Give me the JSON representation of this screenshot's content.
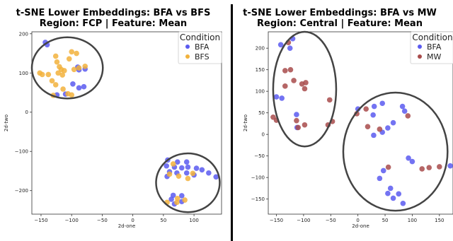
{
  "chart_data": [
    {
      "type": "scatter",
      "title": "t-SNE Lower Embeddings: BFA vs BFS",
      "subtitle": "Region: FCP | Feature: Mean",
      "xlabel": "2d-one",
      "ylabel": "2d-two",
      "xlim": [
        -165,
        145
      ],
      "ylim": [
        -260,
        205
      ],
      "xticks": [
        -150,
        -100,
        -50,
        0,
        50,
        100
      ],
      "yticks": [
        -200,
        -100,
        0,
        100,
        200
      ],
      "xtick_labels": [
        "−150",
        "−100",
        "−50",
        "0",
        "50",
        "100"
      ],
      "ytick_labels": [
        "−200",
        "−100",
        "0",
        "100",
        "200"
      ],
      "grid": false,
      "legend": {
        "title": "Condition",
        "placement": "top-right",
        "entries": [
          "BFA",
          "BFS"
        ]
      },
      "series": [
        {
          "name": "BFA",
          "color": "#5b5bf0",
          "points": [
            [
              -143,
              178
            ],
            [
              -140,
              172
            ],
            [
              -90,
              115
            ],
            [
              -88,
              108
            ],
            [
              -78,
              110
            ],
            [
              -98,
              72
            ],
            [
              -88,
              62
            ],
            [
              -80,
              65
            ],
            [
              -124,
              44
            ],
            [
              -110,
              46
            ],
            [
              57,
              -122
            ],
            [
              73,
              -127
            ],
            [
              88,
              -127
            ],
            [
              55,
              -137
            ],
            [
              68,
              -140
            ],
            [
              80,
              -142
            ],
            [
              90,
              -140
            ],
            [
              104,
              -143
            ],
            [
              60,
              -152
            ],
            [
              72,
              -155
            ],
            [
              88,
              -155
            ],
            [
              113,
              -147
            ],
            [
              124,
              -155
            ],
            [
              136,
              -165
            ],
            [
              100,
              -160
            ],
            [
              56,
              -164
            ],
            [
              66,
              -212
            ],
            [
              80,
              -213
            ],
            [
              63,
              -222
            ],
            [
              80,
              -228
            ],
            [
              68,
              -234
            ]
          ]
        },
        {
          "name": "BFS",
          "color": "#f2b23c",
          "points": [
            [
              -152,
              100
            ],
            [
              -148,
              96
            ],
            [
              -138,
              96
            ],
            [
              -126,
              143
            ],
            [
              -124,
              128
            ],
            [
              -120,
              116
            ],
            [
              -117,
              109
            ],
            [
              -112,
              106
            ],
            [
              -122,
              100
            ],
            [
              -115,
              95
            ],
            [
              -100,
              154
            ],
            [
              -92,
              150
            ],
            [
              -104,
              136
            ],
            [
              -88,
              113
            ],
            [
              -96,
              109
            ],
            [
              -78,
              117
            ],
            [
              -132,
              80
            ],
            [
              -126,
              70
            ],
            [
              -114,
              59
            ],
            [
              -106,
              47
            ],
            [
              -100,
              44
            ],
            [
              -130,
              43
            ],
            [
              66,
              -132
            ],
            [
              98,
              -156
            ],
            [
              60,
              -158
            ],
            [
              75,
              -163
            ],
            [
              90,
              -169
            ],
            [
              73,
              -220
            ],
            [
              85,
              -224
            ],
            [
              56,
              -230
            ],
            [
              72,
              -230
            ]
          ]
        }
      ],
      "annotations": [
        {
          "shape": "ellipse",
          "cx": -107,
          "cy": 113,
          "rx": 58,
          "ry": 78
        },
        {
          "shape": "ellipse",
          "cx": 90,
          "cy": -180,
          "rx": 52,
          "ry": 75
        }
      ]
    },
    {
      "type": "scatter",
      "title": "t-SNE Lower Embeddings: BFA vs MW",
      "subtitle": "Region: Central | Feature: Mean",
      "xlabel": "2d-one",
      "ylabel": "2d-two",
      "xlim": [
        -165,
        175
      ],
      "ylim": [
        -185,
        238
      ],
      "xticks": [
        -150,
        -100,
        -50,
        0,
        50,
        100,
        150
      ],
      "yticks": [
        -150,
        -100,
        -50,
        0,
        50,
        100,
        150,
        200
      ],
      "xtick_labels": [
        "−150",
        "−100",
        "−50",
        "0",
        "50",
        "100",
        "150"
      ],
      "ytick_labels": [
        "−150",
        "−100",
        "−50",
        "0",
        "50",
        "100",
        "150",
        "200"
      ],
      "grid": false,
      "legend": {
        "title": "Condition",
        "placement": "top-right",
        "entries": [
          "BFA",
          "MW"
        ]
      },
      "series": [
        {
          "name": "BFA",
          "color": "#5b5bf0",
          "points": [
            [
              -142,
              208
            ],
            [
              -120,
              222
            ],
            [
              -125,
              200
            ],
            [
              -150,
              87
            ],
            [
              -140,
              84
            ],
            [
              -113,
              46
            ],
            [
              -112,
              16
            ],
            [
              0,
              59
            ],
            [
              30,
              65
            ],
            [
              45,
              72
            ],
            [
              82,
              65
            ],
            [
              86,
              54
            ],
            [
              28,
              45
            ],
            [
              29,
              -2
            ],
            [
              45,
              5
            ],
            [
              55,
              15
            ],
            [
              65,
              27
            ],
            [
              93,
              -55
            ],
            [
              100,
              -63
            ],
            [
              47,
              -84
            ],
            [
              40,
              -102
            ],
            [
              60,
              -125
            ],
            [
              55,
              -137
            ],
            [
              75,
              -138
            ],
            [
              65,
              -148
            ],
            [
              83,
              -160
            ],
            [
              170,
              -73
            ]
          ]
        },
        {
          "name": "MW",
          "color": "#a84b4b",
          "points": [
            [
              -128,
              213
            ],
            [
              -134,
              148
            ],
            [
              -124,
              150
            ],
            [
              -134,
              112
            ],
            [
              -118,
              125
            ],
            [
              -103,
              117
            ],
            [
              -96,
              120
            ],
            [
              -98,
              106
            ],
            [
              -156,
              40
            ],
            [
              -150,
              33
            ],
            [
              -113,
              32
            ],
            [
              -110,
              16
            ],
            [
              -98,
              22
            ],
            [
              -52,
              80
            ],
            [
              -47,
              30
            ],
            [
              -55,
              22
            ],
            [
              18,
              18
            ],
            [
              40,
              12
            ],
            [
              -2,
              48
            ],
            [
              15,
              59
            ],
            [
              92,
              43
            ],
            [
              56,
              -76
            ],
            [
              118,
              -80
            ],
            [
              131,
              -77
            ],
            [
              150,
              -75
            ]
          ]
        }
      ],
      "annotations": [
        {
          "shape": "ellipse",
          "cx": -98,
          "cy": 105,
          "rx": 58,
          "ry": 133
        },
        {
          "shape": "ellipse",
          "cx": 69,
          "cy": -40,
          "rx": 96,
          "ry": 137
        }
      ]
    }
  ]
}
